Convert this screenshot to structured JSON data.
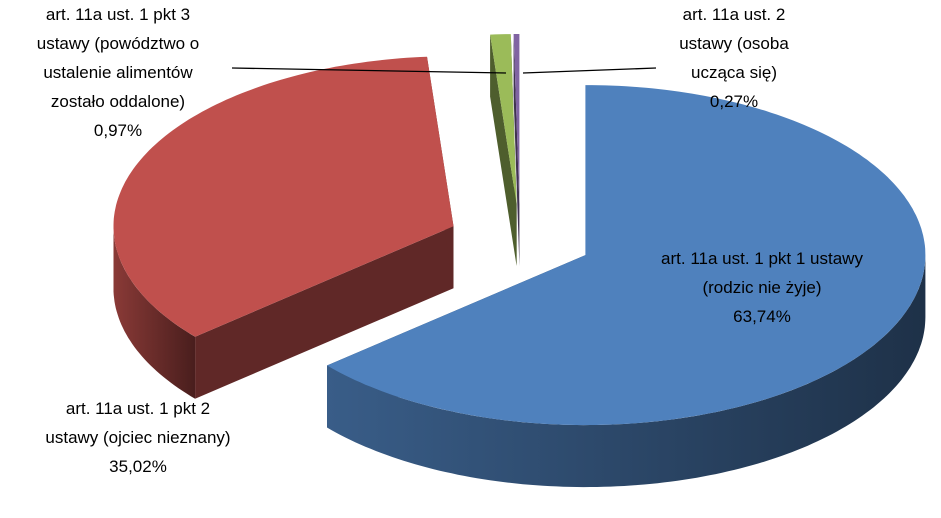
{
  "chart_data": {
    "type": "pie",
    "categories": [
      "art. 11a ust. 1 pkt 1 ustawy (rodzic nie żyje)",
      "art. 11a ust. 1 pkt 2 ustawy (ojciec nieznany)",
      "art. 11a ust. 1 pkt 3 ustawy (powództwo o ustalenie alimentów zostało oddalone)",
      "art. 11a ust. 2 ustawy (osoba ucząca się)"
    ],
    "values": [
      63.74,
      35.02,
      0.97,
      0.27
    ],
    "value_labels": [
      "63,74%",
      "35,02%",
      "0,97%",
      "0,27%"
    ],
    "colors": [
      "#4f81bd",
      "#c0504d",
      "#9bbb59",
      "#8064a2"
    ]
  }
}
